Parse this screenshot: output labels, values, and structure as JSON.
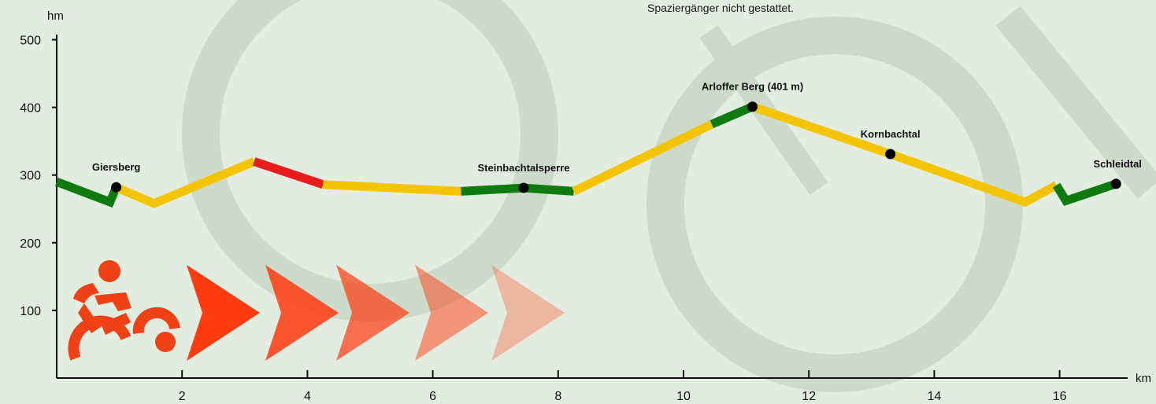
{
  "notice_text": "Spaziergänger nicht gestattet.",
  "chart_data": {
    "type": "line",
    "title": "",
    "xlabel": "km",
    "ylabel": "hm",
    "xlim": [
      0,
      17.3
    ],
    "ylim": [
      0,
      500
    ],
    "x_ticks": [
      "2",
      "4",
      "6",
      "8",
      "10",
      "12",
      "14",
      "16"
    ],
    "y_ticks": [
      "100",
      "200",
      "300",
      "400",
      "500"
    ],
    "grid": false,
    "colors": {
      "easy": "#0f7a10",
      "medium": "#f5c400",
      "hard": "#e81c1c",
      "axis": "#111111"
    },
    "series": [
      {
        "segments": [
          {
            "difficulty": "easy",
            "points": [
              [
                0,
                290
              ],
              [
                0.85,
                260
              ],
              [
                0.95,
                282
              ]
            ]
          },
          {
            "difficulty": "medium",
            "points": [
              [
                0.95,
                282
              ],
              [
                1.55,
                258
              ],
              [
                3.15,
                320
              ]
            ]
          },
          {
            "difficulty": "hard",
            "points": [
              [
                3.15,
                320
              ],
              [
                4.25,
                286
              ]
            ]
          },
          {
            "difficulty": "medium",
            "points": [
              [
                4.25,
                286
              ],
              [
                6.45,
                276
              ]
            ]
          },
          {
            "difficulty": "easy",
            "points": [
              [
                6.45,
                276
              ],
              [
                7.45,
                281
              ],
              [
                8.25,
                276
              ]
            ]
          },
          {
            "difficulty": "medium",
            "points": [
              [
                8.25,
                276
              ],
              [
                10.45,
                375
              ]
            ]
          },
          {
            "difficulty": "easy",
            "points": [
              [
                10.45,
                375
              ],
              [
                11.1,
                401
              ]
            ]
          },
          {
            "difficulty": "medium",
            "points": [
              [
                11.1,
                401
              ],
              [
                13.3,
                331
              ],
              [
                15.45,
                260
              ],
              [
                15.95,
                285
              ]
            ]
          },
          {
            "difficulty": "easy",
            "points": [
              [
                15.95,
                285
              ],
              [
                16.1,
                262
              ],
              [
                16.9,
                287
              ]
            ]
          }
        ]
      }
    ],
    "annotations": [
      {
        "label": "Giersberg",
        "x": 0.95,
        "y": 282
      },
      {
        "label": "Steinbachtalsperre",
        "x": 7.45,
        "y": 281
      },
      {
        "label": "Arloffer Berg (401 m)",
        "x": 11.1,
        "y": 401
      },
      {
        "label": "Kornbachtal",
        "x": 13.3,
        "y": 331
      },
      {
        "label": "Schleidtal",
        "x": 16.9,
        "y": 287
      }
    ]
  },
  "decoration": {
    "icon": "cyclist-icon",
    "arrow_icon": "chevron-arrow-icon",
    "arrow_count": 5,
    "arrow_color": "#ff3b10"
  }
}
